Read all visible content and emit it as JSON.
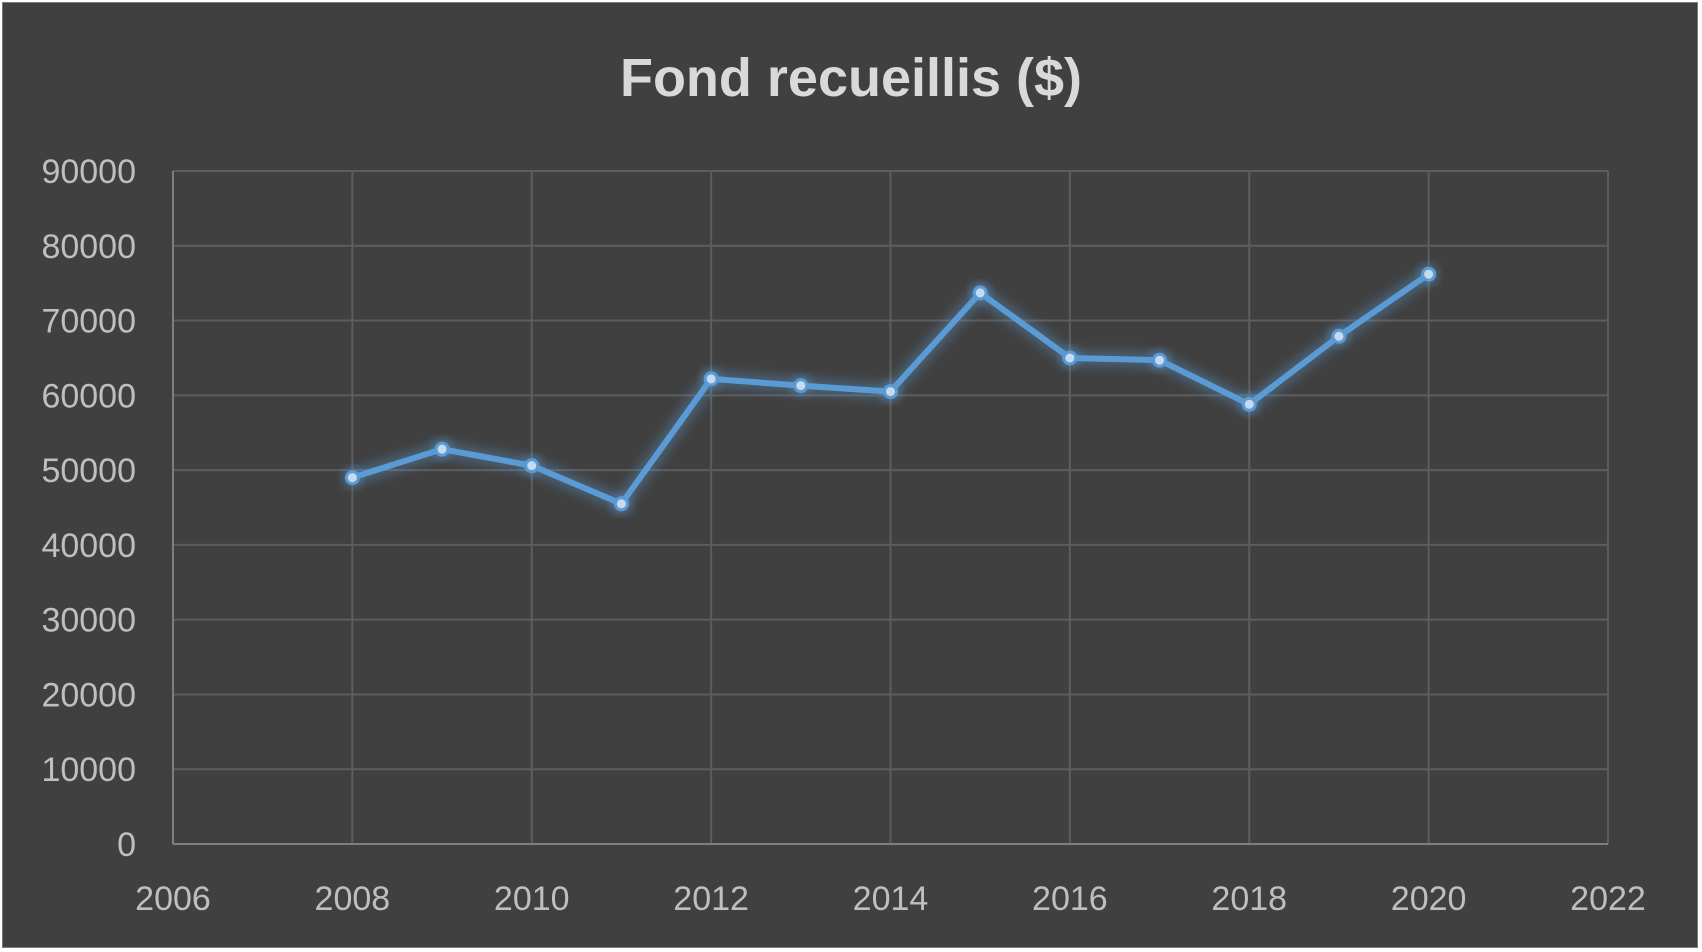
{
  "chart_data": {
    "type": "scatter",
    "subtype": "line-with-markers",
    "title": "Fond recueillis ($)",
    "xlabel": "",
    "ylabel": "",
    "xlim": [
      2006,
      2022
    ],
    "ylim": [
      0,
      90000
    ],
    "x_ticks": [
      "2006",
      "2008",
      "2010",
      "2012",
      "2014",
      "2016",
      "2018",
      "2020",
      "2022"
    ],
    "y_ticks": [
      "0",
      "10000",
      "20000",
      "30000",
      "40000",
      "50000",
      "60000",
      "70000",
      "80000",
      "90000"
    ],
    "grid": true,
    "legend": "none",
    "series": [
      {
        "color": "#5b9bd5",
        "x": [
          2008,
          2009,
          2010,
          2011,
          2012,
          2013,
          2014,
          2015,
          2016,
          2017,
          2018,
          2019,
          2020
        ],
        "y": [
          49000,
          52800,
          50600,
          45500,
          62200,
          61300,
          60500,
          73700,
          65000,
          64700,
          58800,
          67900,
          76200
        ]
      }
    ]
  },
  "colors": {
    "background": "#404040",
    "series": "#5b9bd5",
    "text": "#d9d9d9"
  }
}
